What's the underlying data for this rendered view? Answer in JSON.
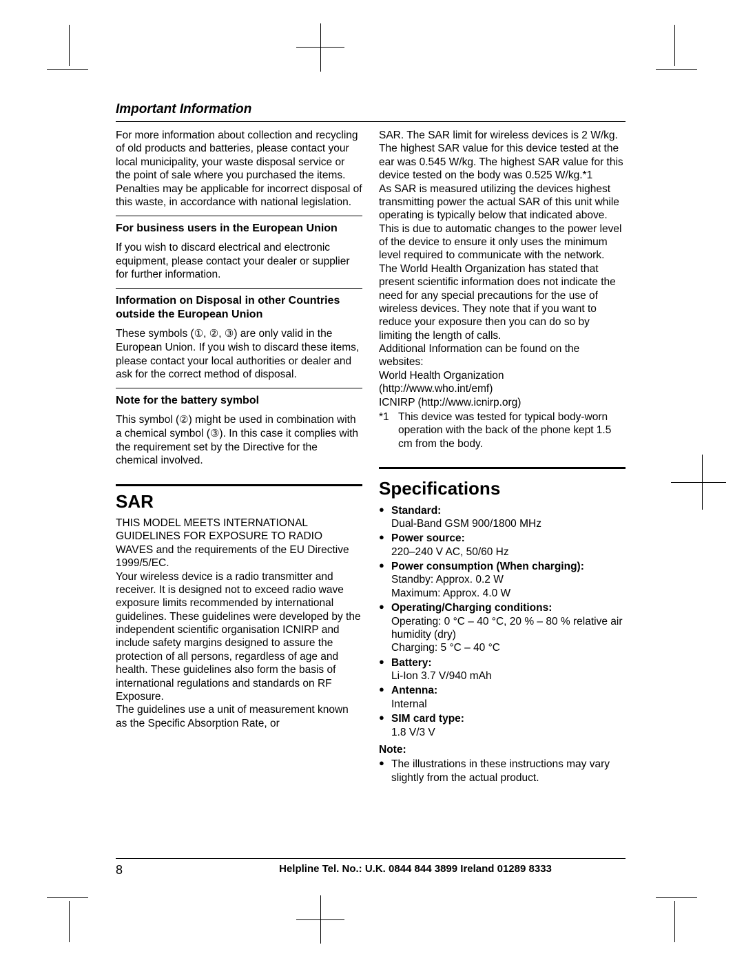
{
  "header": {
    "title": "Important Information"
  },
  "left": {
    "intro_p1": "For more information about collection and recycling of old products and batteries, please contact your local municipality, your waste disposal service or the point of sale where you purchased the items.",
    "intro_p2": "Penalties may be applicable for incorrect disposal of this waste, in accordance with national legislation.",
    "h1": "For business users in the European Union",
    "p1": "If you wish to discard electrical and electronic equipment, please contact your dealer or supplier for further information.",
    "h2": "Information on Disposal in other Countries outside the European Union",
    "p2a": "These symbols (",
    "p2b": ") are only valid in the European Union. If you wish to discard these items, please contact your local authorities or dealer and ask for the correct method of disposal.",
    "sym1": "①",
    "sym2": "②",
    "sym3": "③",
    "h3": "Note for the battery symbol",
    "p3a": "This symbol (",
    "p3b": ") might be used in combination with a chemical symbol (",
    "p3c": "). In this case it complies with the requirement set by the Directive for the chemical involved.",
    "sar_heading": "SAR",
    "sar_p1": "THIS MODEL MEETS INTERNATIONAL GUIDELINES FOR EXPOSURE TO RADIO WAVES and the requirements of the EU Directive 1999/5/EC.",
    "sar_p2": "Your wireless device is a radio transmitter and receiver. It is designed not to exceed radio wave exposure limits recommended by international guidelines. These guidelines were developed by the independent scientific organisation ICNIRP and include safety margins designed to assure the protection of all persons, regardless of age and health. These guidelines also form the basis of international regulations and standards on RF Exposure.",
    "sar_p3": "The guidelines use a unit of measurement known as the Specific Absorption Rate, or"
  },
  "right": {
    "sar_p4": "SAR. The SAR limit for wireless devices is 2 W/kg. The highest SAR value for this device tested at the ear was 0.545 W/kg. The highest SAR value for this device tested on the body was 0.525 W/kg.*1",
    "sar_p5": "As SAR is measured utilizing the devices highest transmitting power the actual SAR of this unit while operating is typically below that indicated above. This is due to automatic changes to the power level of the device to ensure it only uses the minimum level required to communicate with the network.",
    "sar_p6": "The World Health Organization has stated that present scientific information does not indicate the need for any special precautions for the use of wireless devices. They note that if you want to reduce your exposure then you can do so by limiting the length of calls.",
    "sar_p7": "Additional Information can be found on the websites:",
    "sar_p8": "World Health Organization",
    "sar_p9": "(http://www.who.int/emf)",
    "sar_p10": "ICNIRP (http://www.icnirp.org)",
    "fn_mark": "*1",
    "fn_text": "This device was tested for typical body-worn operation with the back of the phone kept 1.5 cm from the body.",
    "spec_heading": "Specifications",
    "specs": [
      {
        "label": "Standard:",
        "value": "Dual-Band GSM 900/1800 MHz"
      },
      {
        "label": "Power source:",
        "value": "220–240 V AC, 50/60 Hz"
      },
      {
        "label": "Power consumption (When charging):",
        "value": "Standby: Approx. 0.2 W\nMaximum: Approx. 4.0 W"
      },
      {
        "label": "Operating/Charging conditions:",
        "value": "Operating: 0 °C – 40 °C, 20 % – 80 % relative air humidity (dry)\nCharging: 5 °C – 40 °C"
      },
      {
        "label": "Battery:",
        "value": "Li-Ion 3.7 V/940 mAh"
      },
      {
        "label": "Antenna:",
        "value": "Internal"
      },
      {
        "label": "SIM card type:",
        "value": "1.8 V/3 V"
      }
    ],
    "note_label": "Note:",
    "note_text": "The illustrations in these instructions may vary slightly from the actual product."
  },
  "footer": {
    "page_num": "8",
    "helpline": "Helpline Tel. No.: U.K. 0844 844 3899 Ireland 01289 8333"
  }
}
